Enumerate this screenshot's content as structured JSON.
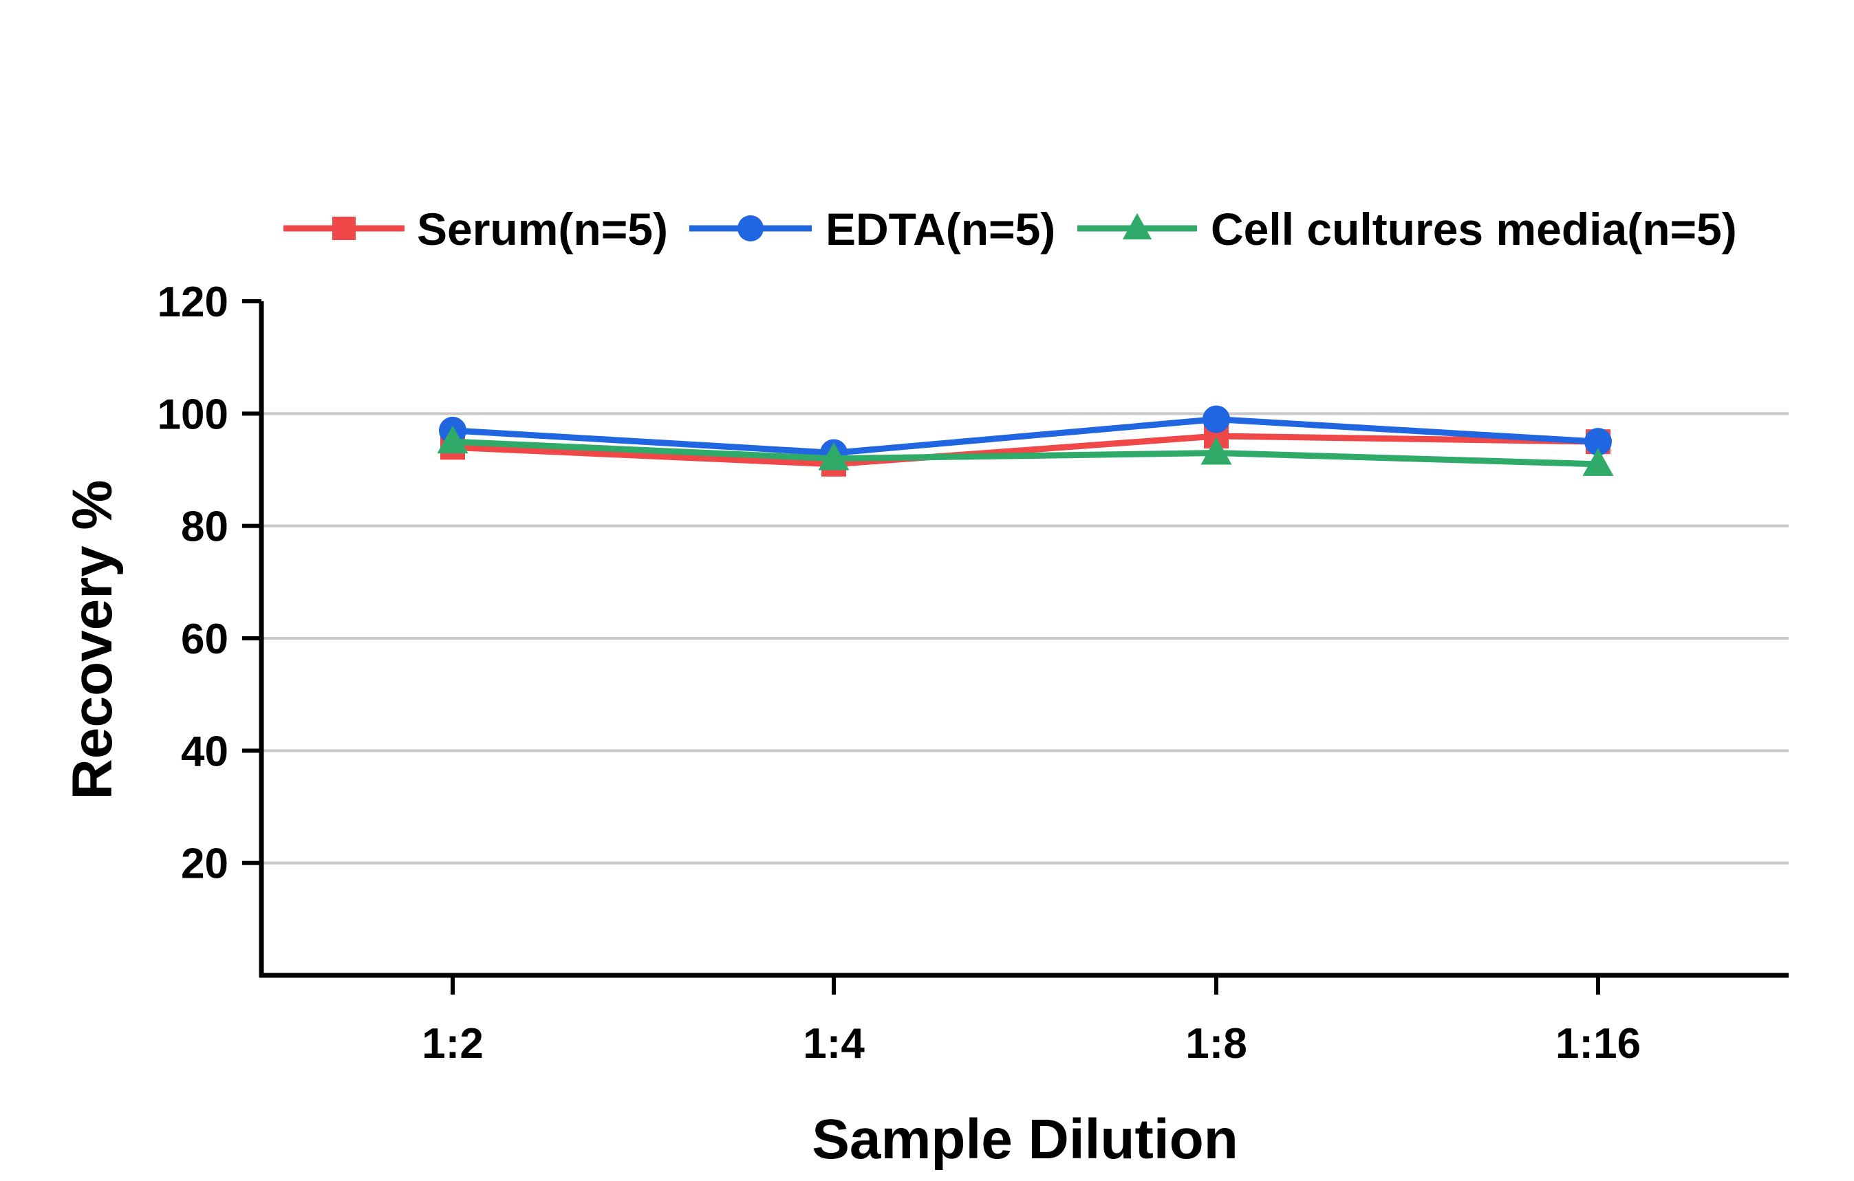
{
  "chart_data": {
    "type": "line",
    "title": "",
    "xlabel": "Sample Dilution",
    "ylabel": "Recovery %",
    "categories": [
      "1:2",
      "1:4",
      "1:8",
      "1:16"
    ],
    "ylim": [
      0,
      120
    ],
    "yticks": [
      20,
      40,
      60,
      80,
      100,
      120
    ],
    "grid": true,
    "legend_position": "top",
    "series": [
      {
        "name": "Serum(n=5)",
        "values": [
          94,
          91,
          96,
          95
        ],
        "color": "#f04848",
        "marker": "square"
      },
      {
        "name": "EDTA(n=5)",
        "values": [
          97,
          93,
          99,
          95
        ],
        "color": "#1f66e0",
        "marker": "circle"
      },
      {
        "name": "Cell cultures media(n=5)",
        "values": [
          95,
          92,
          93,
          91
        ],
        "color": "#2faa68",
        "marker": "triangle"
      }
    ]
  }
}
